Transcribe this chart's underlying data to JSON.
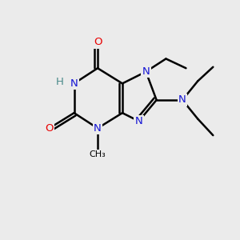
{
  "bg_color": "#ebebeb",
  "atom_colors": {
    "C": "#000000",
    "N": "#1414d4",
    "O": "#e80000",
    "H": "#4a8a8a"
  },
  "bond_color": "#000000",
  "bond_width": 1.8,
  "figsize": [
    3.0,
    3.0
  ],
  "dpi": 100,
  "xlim": [
    0,
    10
  ],
  "ylim": [
    0,
    10
  ]
}
